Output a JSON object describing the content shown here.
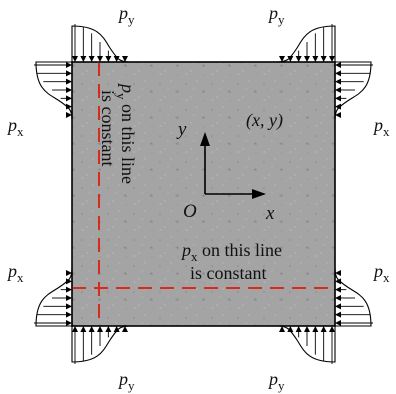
{
  "labels": {
    "load_top_left": "p",
    "load_top_left_sub": "y",
    "load_top_right": "p",
    "load_top_right_sub": "y",
    "load_bottom_left": "p",
    "load_bottom_left_sub": "y",
    "load_bottom_right": "p",
    "load_bottom_right_sub": "y",
    "load_left_upper": "p",
    "load_left_upper_sub": "x",
    "load_left_lower": "p",
    "load_left_lower_sub": "x",
    "load_right_upper": "p",
    "load_right_upper_sub": "x",
    "load_right_lower": "p",
    "load_right_lower_sub": "x",
    "vertical_note_var": "p",
    "vertical_note_sub": "y",
    "vertical_note_text1": " on this line",
    "vertical_note_text2": "is constant",
    "horizontal_note_var": "p",
    "horizontal_note_sub": "x",
    "horizontal_note_text1": " on this line",
    "horizontal_note_text2": "is constant",
    "point": "(x, y)",
    "axis_y": "y",
    "axis_x": "x",
    "origin": "O"
  },
  "colors": {
    "plate": "#a4a4a4",
    "dashed_line": "#d62c1f",
    "outline": "#000000"
  }
}
